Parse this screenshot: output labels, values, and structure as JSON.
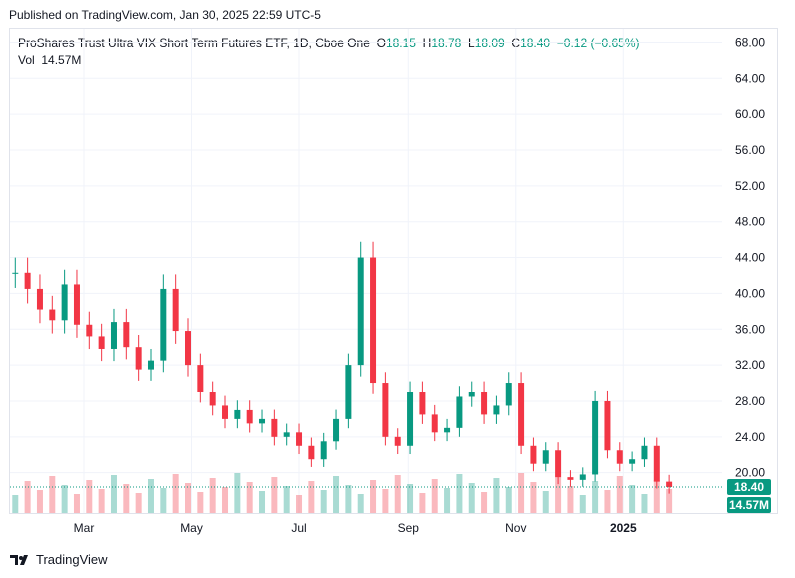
{
  "header": {
    "published": "Published on TradingView.com, Jan 30, 2025 22:59 UTC-5"
  },
  "legend": {
    "symbol": "ProShares Trust Ultra VIX Short Term Futures ETF, 1D, Cboe One",
    "o_label": "O",
    "o": "18.15",
    "h_label": "H",
    "h": "18.78",
    "l_label": "L",
    "l": "18.09",
    "c_label": "C",
    "c": "18.40",
    "change": "−0.12 (−0.65%)",
    "vol_label": "Vol",
    "vol": "14.57M"
  },
  "footer": {
    "brand": "TradingView"
  },
  "colors": {
    "up": "#089981",
    "down": "#f23645",
    "grid": "#f0f3fa",
    "axis_text": "#131722",
    "price_tag": "#089981"
  },
  "chart_data": {
    "type": "candlestick",
    "title": "ProShares Trust Ultra VIX Short Term Futures ETF, 1D, Cboe One",
    "y_ticks": [
      20,
      24,
      28,
      32,
      36,
      40,
      44,
      48,
      52,
      56,
      60,
      64,
      68
    ],
    "y_tick_labels": [
      "20.00",
      "24.00",
      "28.00",
      "32.00",
      "36.00",
      "40.00",
      "44.00",
      "48.00",
      "52.00",
      "56.00",
      "60.00",
      "64.00",
      "68.00"
    ],
    "ylim": [
      15.5,
      69.5
    ],
    "x_tick_labels": [
      "Mar",
      "May",
      "Jul",
      "Sep",
      "Nov",
      "2025"
    ],
    "x_tick_dates": [
      "2024-03-01",
      "2024-05-01",
      "2024-07-01",
      "2024-09-01",
      "2024-11-01",
      "2025-01-01"
    ],
    "xlim": [
      "2024-01-19",
      "2025-02-26"
    ],
    "last_price": "18.40",
    "last_volume": "14.57M",
    "grid": true,
    "series": [
      {
        "date": "2024-01-22",
        "close": 42.3
      },
      {
        "date": "2024-01-29",
        "close": 40.5
      },
      {
        "date": "2024-02-05",
        "close": 38.2
      },
      {
        "date": "2024-02-12",
        "close": 37.0
      },
      {
        "date": "2024-02-19",
        "close": 41.0
      },
      {
        "date": "2024-02-26",
        "close": 36.5
      },
      {
        "date": "2024-03-04",
        "close": 35.2
      },
      {
        "date": "2024-03-11",
        "close": 33.8
      },
      {
        "date": "2024-03-18",
        "close": 36.8
      },
      {
        "date": "2024-03-25",
        "close": 34.0
      },
      {
        "date": "2024-04-01",
        "close": 31.5
      },
      {
        "date": "2024-04-08",
        "close": 32.5
      },
      {
        "date": "2024-04-15",
        "close": 40.5
      },
      {
        "date": "2024-04-22",
        "close": 35.8
      },
      {
        "date": "2024-04-29",
        "close": 32.0
      },
      {
        "date": "2024-05-06",
        "close": 29.0
      },
      {
        "date": "2024-05-13",
        "close": 27.5
      },
      {
        "date": "2024-05-20",
        "close": 26.0
      },
      {
        "date": "2024-05-27",
        "close": 27.0
      },
      {
        "date": "2024-06-03",
        "close": 25.5
      },
      {
        "date": "2024-06-10",
        "close": 26.0
      },
      {
        "date": "2024-06-17",
        "close": 24.0
      },
      {
        "date": "2024-06-24",
        "close": 24.5
      },
      {
        "date": "2024-07-01",
        "close": 23.0
      },
      {
        "date": "2024-07-08",
        "close": 21.5
      },
      {
        "date": "2024-07-15",
        "close": 23.5
      },
      {
        "date": "2024-07-22",
        "close": 26.0
      },
      {
        "date": "2024-07-29",
        "close": 32.0
      },
      {
        "date": "2024-08-05",
        "close": 44.0
      },
      {
        "date": "2024-08-12",
        "close": 30.0
      },
      {
        "date": "2024-08-19",
        "close": 24.0
      },
      {
        "date": "2024-08-26",
        "close": 23.0
      },
      {
        "date": "2024-09-02",
        "close": 29.0
      },
      {
        "date": "2024-09-09",
        "close": 26.5
      },
      {
        "date": "2024-09-16",
        "close": 24.5
      },
      {
        "date": "2024-09-23",
        "close": 25.0
      },
      {
        "date": "2024-09-30",
        "close": 28.5
      },
      {
        "date": "2024-10-07",
        "close": 29.0
      },
      {
        "date": "2024-10-14",
        "close": 26.5
      },
      {
        "date": "2024-10-21",
        "close": 27.5
      },
      {
        "date": "2024-10-28",
        "close": 30.0
      },
      {
        "date": "2024-11-04",
        "close": 23.0
      },
      {
        "date": "2024-11-11",
        "close": 21.0
      },
      {
        "date": "2024-11-18",
        "close": 22.5
      },
      {
        "date": "2024-11-25",
        "close": 19.5
      },
      {
        "date": "2024-12-02",
        "close": 19.2
      },
      {
        "date": "2024-12-09",
        "close": 19.8
      },
      {
        "date": "2024-12-16",
        "close": 28.0
      },
      {
        "date": "2024-12-23",
        "close": 22.5
      },
      {
        "date": "2024-12-30",
        "close": 21.0
      },
      {
        "date": "2025-01-06",
        "close": 21.5
      },
      {
        "date": "2025-01-13",
        "close": 23.0
      },
      {
        "date": "2025-01-20",
        "close": 19.0
      },
      {
        "date": "2025-01-27",
        "close": 18.4
      }
    ]
  }
}
